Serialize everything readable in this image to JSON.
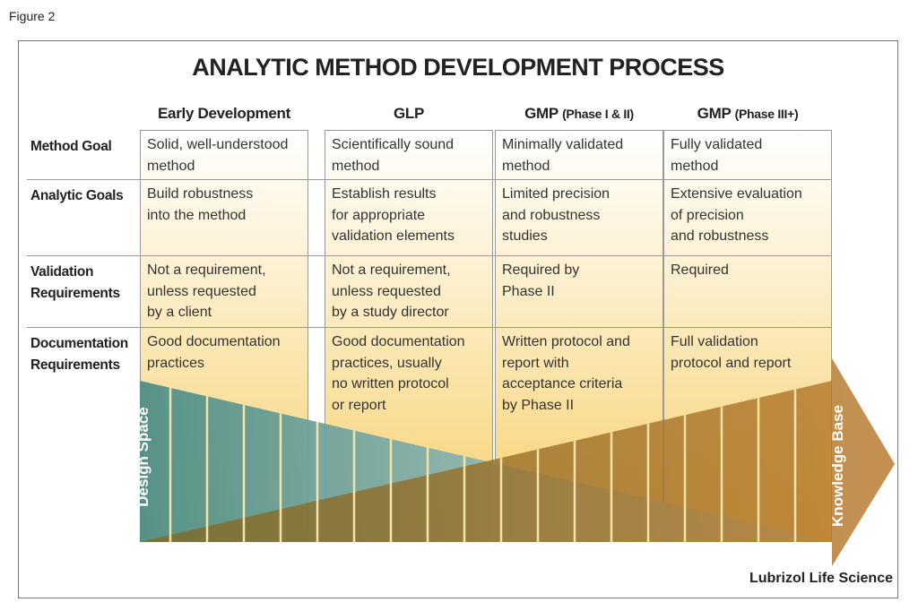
{
  "figure_label": "Figure 2",
  "title": "ANALYTIC METHOD DEVELOPMENT PROCESS",
  "columns": [
    {
      "name": "Early Development"
    },
    {
      "name": "GLP"
    },
    {
      "name": "GMP",
      "note": "(Phase I & II)"
    },
    {
      "name": "GMP",
      "note": "(Phase III+)"
    }
  ],
  "rows": [
    {
      "label": [
        "Method Goal"
      ],
      "cells": [
        [
          "Solid, well-understood",
          "method"
        ],
        [
          "Scientifically sound",
          "method"
        ],
        [
          "Minimally validated",
          "method"
        ],
        [
          "Fully validated",
          "method"
        ]
      ]
    },
    {
      "label": [
        "Analytic Goals"
      ],
      "cells": [
        [
          "Build robustness",
          "into the method"
        ],
        [
          "Establish results",
          "for appropriate",
          "validation elements"
        ],
        [
          "Limited precision",
          "and robustness",
          "studies"
        ],
        [
          "Extensive evaluation",
          "of precision",
          "and robustness"
        ]
      ]
    },
    {
      "label": [
        "Validation",
        "Requirements"
      ],
      "cells": [
        [
          "Not a requirement,",
          "unless requested",
          "by a client"
        ],
        [
          "Not a requirement,",
          "unless requested",
          "by a study director"
        ],
        [
          "Required by",
          "Phase II"
        ],
        [
          "Required"
        ]
      ]
    },
    {
      "label": [
        "Documentation",
        "Requirements"
      ],
      "cells": [
        [
          "Good documentation",
          "practices"
        ],
        [
          "Good documentation",
          "practices, usually",
          "no written protocol",
          "or report"
        ],
        [
          "Written protocol and",
          "report with",
          "acceptance criteria",
          "by Phase II"
        ],
        [
          "Full validation",
          "protocol and report"
        ]
      ]
    }
  ],
  "design_space_label": "Design Space",
  "knowledge_base_label": "Knowledge Base",
  "credit": "Lubrizol Life Science"
}
